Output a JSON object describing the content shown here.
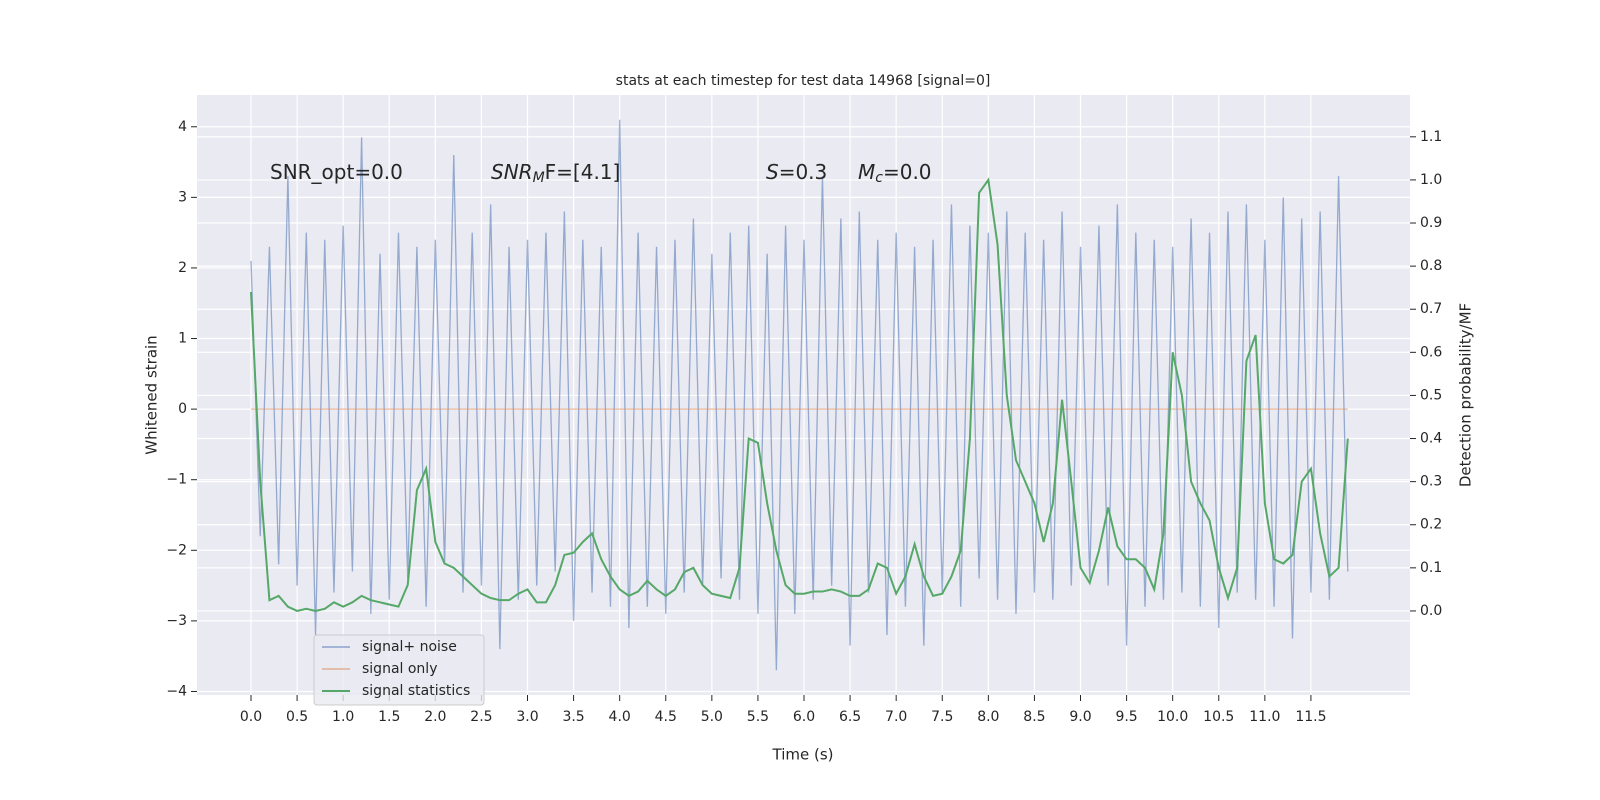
{
  "chart_data": {
    "type": "line",
    "title": "stats at each timestep for test data 14968 [signal=0]",
    "xlabel": "Time (s)",
    "ylabel": "Whitened strain",
    "y2label": "Detection probability/MF",
    "annotations": [
      [
        "SNR_opt=0.0"
      ],
      [
        "SNR",
        "M",
        "F=[4.1]"
      ],
      [
        "S",
        "=0.3"
      ],
      [
        "M",
        "c",
        "=0.0"
      ]
    ],
    "x": [
      0.0,
      0.1,
      0.2,
      0.3,
      0.4,
      0.5,
      0.6,
      0.7,
      0.8,
      0.9,
      1.0,
      1.1,
      1.2,
      1.3,
      1.4,
      1.5,
      1.6,
      1.7,
      1.8,
      1.9,
      2.0,
      2.1,
      2.2,
      2.3,
      2.4,
      2.5,
      2.6,
      2.7,
      2.8,
      2.9,
      3.0,
      3.1,
      3.2,
      3.3,
      3.4,
      3.5,
      3.6,
      3.7,
      3.8,
      3.9,
      4.0,
      4.1,
      4.2,
      4.3,
      4.4,
      4.5,
      4.6,
      4.7,
      4.8,
      4.9,
      5.0,
      5.1,
      5.2,
      5.3,
      5.4,
      5.5,
      5.6,
      5.7,
      5.8,
      5.9,
      6.0,
      6.1,
      6.2,
      6.3,
      6.4,
      6.5,
      6.6,
      6.7,
      6.8,
      6.9,
      7.0,
      7.1,
      7.2,
      7.3,
      7.4,
      7.5,
      7.6,
      7.7,
      7.8,
      7.9,
      8.0,
      8.1,
      8.2,
      8.3,
      8.4,
      8.5,
      8.6,
      8.7,
      8.8,
      8.9,
      9.0,
      9.1,
      9.2,
      9.3,
      9.4,
      9.5,
      9.6,
      9.7,
      9.8,
      9.9,
      10.0,
      10.1,
      10.2,
      10.3,
      10.4,
      10.5,
      10.6,
      10.7,
      10.8,
      10.9,
      11.0,
      11.1,
      11.2,
      11.3,
      11.4,
      11.5,
      11.6,
      11.7,
      11.8,
      11.9
    ],
    "series": [
      {
        "name": "signal+ noise",
        "color": "#4c72b0",
        "values": [
          2.1,
          -1.8,
          2.3,
          -2.2,
          3.3,
          -2.5,
          2.5,
          -3.2,
          2.4,
          -2.6,
          2.6,
          -2.3,
          3.85,
          -2.9,
          2.2,
          -2.7,
          2.5,
          -2.4,
          2.3,
          -2.8,
          2.4,
          -2.2,
          3.6,
          -2.6,
          2.5,
          -2.5,
          2.9,
          -3.4,
          2.3,
          -2.7,
          2.4,
          -2.5,
          2.5,
          -2.3,
          2.8,
          -3.0,
          2.4,
          -2.6,
          2.3,
          -2.8,
          4.1,
          -3.1,
          2.5,
          -2.8,
          2.3,
          -2.9,
          2.4,
          -2.6,
          2.7,
          -2.5,
          2.2,
          -2.4,
          2.5,
          -2.7,
          2.6,
          -2.9,
          2.2,
          -3.7,
          2.6,
          -2.9,
          2.4,
          -2.7,
          3.3,
          -2.5,
          2.7,
          -3.35,
          2.8,
          -2.6,
          2.4,
          -3.2,
          2.5,
          -2.8,
          2.3,
          -3.35,
          2.4,
          -2.6,
          2.9,
          -2.8,
          2.6,
          -2.4,
          2.5,
          -2.7,
          2.8,
          -2.9,
          2.5,
          -2.6,
          2.4,
          -2.7,
          2.8,
          -2.5,
          2.3,
          -2.4,
          2.6,
          -2.5,
          2.9,
          -3.35,
          2.5,
          -2.8,
          2.4,
          -2.7,
          2.3,
          -2.6,
          2.7,
          -2.8,
          2.5,
          -3.1,
          2.8,
          -2.6,
          2.9,
          -2.7,
          2.4,
          -2.8,
          3.0,
          -3.25,
          2.7,
          -2.6,
          2.8,
          -2.7,
          3.3,
          -2.3
        ]
      },
      {
        "name": "signal only",
        "color": "#dd8452",
        "values": [
          0,
          0,
          0,
          0,
          0,
          0,
          0,
          0,
          0,
          0,
          0,
          0,
          0,
          0,
          0,
          0,
          0,
          0,
          0,
          0,
          0,
          0,
          0,
          0,
          0,
          0,
          0,
          0,
          0,
          0,
          0,
          0,
          0,
          0,
          0,
          0,
          0,
          0,
          0,
          0,
          0,
          0,
          0,
          0,
          0,
          0,
          0,
          0,
          0,
          0,
          0,
          0,
          0,
          0,
          0,
          0,
          0,
          0,
          0,
          0,
          0,
          0,
          0,
          0,
          0,
          0,
          0,
          0,
          0,
          0,
          0,
          0,
          0,
          0,
          0,
          0,
          0,
          0,
          0,
          0,
          0,
          0,
          0,
          0,
          0,
          0,
          0,
          0,
          0,
          0,
          0,
          0,
          0,
          0,
          0,
          0,
          0,
          0,
          0,
          0,
          0,
          0,
          0,
          0,
          0,
          0,
          0,
          0,
          0,
          0,
          0,
          0,
          0,
          0,
          0,
          0,
          0,
          0,
          0,
          0
        ]
      },
      {
        "name": "signal statistics",
        "color": "#55a868",
        "axis": "y2",
        "values": [
          0.74,
          0.3,
          0.025,
          0.035,
          0.01,
          0.0,
          0.005,
          0.0,
          0.005,
          0.02,
          0.01,
          0.02,
          0.035,
          0.025,
          0.02,
          0.015,
          0.01,
          0.06,
          0.28,
          0.33,
          0.16,
          0.11,
          0.1,
          0.08,
          0.06,
          0.04,
          0.03,
          0.025,
          0.025,
          0.04,
          0.05,
          0.02,
          0.02,
          0.06,
          0.13,
          0.135,
          0.16,
          0.18,
          0.12,
          0.08,
          0.05,
          0.035,
          0.045,
          0.07,
          0.05,
          0.035,
          0.05,
          0.09,
          0.1,
          0.06,
          0.04,
          0.035,
          0.03,
          0.1,
          0.4,
          0.39,
          0.25,
          0.14,
          0.06,
          0.04,
          0.04,
          0.045,
          0.045,
          0.05,
          0.045,
          0.035,
          0.035,
          0.05,
          0.11,
          0.1,
          0.04,
          0.08,
          0.155,
          0.08,
          0.035,
          0.04,
          0.08,
          0.14,
          0.4,
          0.97,
          1.0,
          0.85,
          0.5,
          0.35,
          0.3,
          0.25,
          0.16,
          0.25,
          0.49,
          0.3,
          0.1,
          0.065,
          0.14,
          0.24,
          0.15,
          0.12,
          0.12,
          0.1,
          0.05,
          0.18,
          0.6,
          0.5,
          0.3,
          0.25,
          0.21,
          0.1,
          0.03,
          0.1,
          0.58,
          0.64,
          0.25,
          0.12,
          0.11,
          0.13,
          0.3,
          0.33,
          0.18,
          0.08,
          0.1,
          0.4
        ]
      }
    ],
    "xlim": [
      -0.586,
      12.575
    ],
    "xticks": [
      {
        "value": 0,
        "label": "0.0"
      },
      0.5,
      {
        "value": 1,
        "label": "1.0"
      },
      1.5,
      {
        "value": 2,
        "label": "2.0"
      },
      2.5,
      {
        "value": 3,
        "label": "3.0"
      },
      3.5,
      {
        "value": 4,
        "label": "4.0"
      },
      4.5,
      {
        "value": 5,
        "label": "5.0"
      },
      5.5,
      {
        "value": 6,
        "label": "6.0"
      },
      6.5,
      {
        "value": 7,
        "label": "7.0"
      },
      7.5,
      {
        "value": 8,
        "label": "8.0"
      },
      8.5,
      {
        "value": 9,
        "label": "9.0"
      },
      9.5,
      {
        "value": 10,
        "label": "10.0"
      },
      10.5,
      {
        "value": 11,
        "label": "11.0"
      },
      11.5
    ],
    "ylim": [
      -4.05,
      4.45
    ],
    "yticks": [
      {
        "value": -4,
        "label": "−4"
      },
      {
        "value": -3,
        "label": "−3"
      },
      {
        "value": -2,
        "label": "−2"
      },
      {
        "value": -1,
        "label": "−1"
      },
      0,
      1,
      2,
      3,
      4
    ],
    "y2lim": [
      -0.195,
      1.197
    ],
    "y2ticks": [
      {
        "value": 0,
        "label": "0.0"
      },
      0.1,
      0.2,
      0.3,
      0.4,
      0.5,
      0.6,
      0.7,
      0.8,
      0.9,
      {
        "value": 1,
        "label": "1.0"
      },
      1.1
    ],
    "grid": true,
    "legend": "lower left"
  }
}
